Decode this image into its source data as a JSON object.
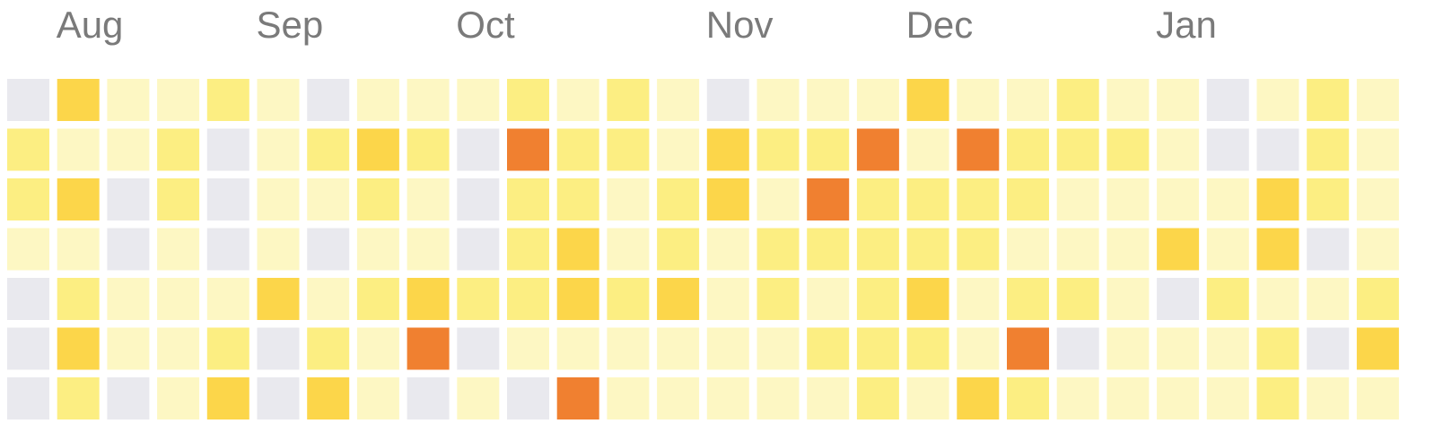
{
  "chart_data": {
    "type": "heatmap",
    "x_labels": [
      "Aug",
      "Sep",
      "Oct",
      "Nov",
      "Dec",
      "Jan"
    ],
    "x_label_week_index": [
      1,
      5,
      9,
      14,
      18,
      23
    ],
    "weeks": 28,
    "days_per_week": 7,
    "levels": [
      0,
      1,
      2,
      3,
      4
    ],
    "level_colors": [
      "#e9e9ee",
      "#fdf7c3",
      "#fcee82",
      "#fcd64a",
      "#f08030"
    ],
    "grid_by_row": [
      [
        0,
        3,
        1,
        1,
        2,
        1,
        0,
        1,
        1,
        1,
        2,
        1,
        2,
        1,
        0,
        1,
        1,
        1,
        3,
        1,
        1,
        2,
        1,
        1,
        0,
        1,
        2,
        1
      ],
      [
        2,
        1,
        1,
        2,
        0,
        1,
        2,
        3,
        2,
        0,
        4,
        2,
        2,
        1,
        3,
        2,
        2,
        4,
        1,
        4,
        2,
        2,
        2,
        1,
        0,
        0,
        2,
        1
      ],
      [
        2,
        3,
        0,
        2,
        0,
        1,
        1,
        2,
        1,
        0,
        2,
        2,
        1,
        2,
        3,
        1,
        4,
        2,
        2,
        2,
        2,
        1,
        1,
        1,
        1,
        3,
        2,
        1
      ],
      [
        1,
        1,
        0,
        1,
        0,
        1,
        0,
        1,
        1,
        0,
        2,
        3,
        1,
        2,
        1,
        2,
        2,
        2,
        2,
        2,
        1,
        1,
        1,
        3,
        1,
        3,
        0,
        1
      ],
      [
        0,
        2,
        1,
        1,
        1,
        3,
        1,
        2,
        3,
        2,
        2,
        3,
        2,
        3,
        1,
        2,
        1,
        2,
        3,
        1,
        2,
        2,
        1,
        0,
        2,
        1,
        1,
        2
      ],
      [
        0,
        3,
        1,
        1,
        2,
        0,
        2,
        1,
        4,
        0,
        1,
        1,
        1,
        1,
        1,
        1,
        2,
        2,
        2,
        1,
        4,
        0,
        1,
        1,
        1,
        2,
        0,
        3
      ],
      [
        0,
        2,
        0,
        1,
        3,
        0,
        3,
        1,
        0,
        1,
        0,
        4,
        1,
        1,
        1,
        1,
        1,
        2,
        1,
        3,
        2,
        1,
        1,
        1,
        1,
        2,
        1,
        1
      ]
    ],
    "grid": false,
    "legend": "none"
  }
}
